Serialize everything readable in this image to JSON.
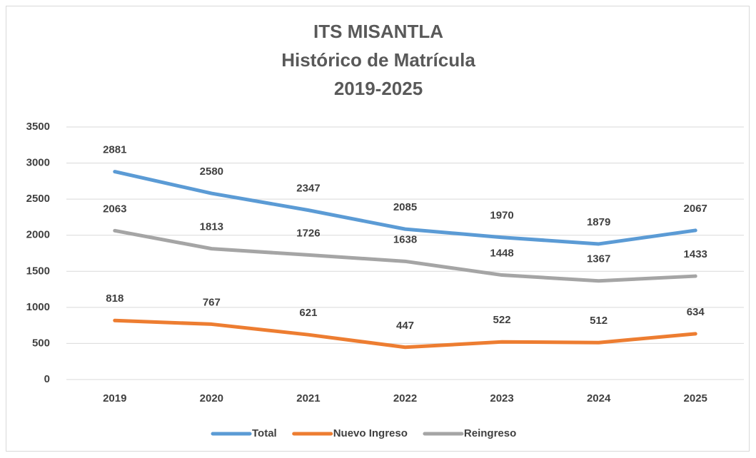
{
  "chart_data": {
    "type": "line",
    "title": [
      "ITS MISANTLA",
      "Histórico de Matrícula",
      "2019-2025"
    ],
    "categories": [
      "2019",
      "2020",
      "2021",
      "2022",
      "2023",
      "2024",
      "2025"
    ],
    "series": [
      {
        "name": "Total",
        "color": "#5b9bd5",
        "values": [
          2881,
          2580,
          2347,
          2085,
          1970,
          1879,
          2067
        ]
      },
      {
        "name": "Nuevo Ingreso",
        "color": "#ed7d31",
        "values": [
          818,
          767,
          621,
          447,
          522,
          512,
          634
        ]
      },
      {
        "name": "Reingreso",
        "color": "#a5a5a5",
        "values": [
          2063,
          1813,
          1726,
          1638,
          1448,
          1367,
          1433
        ]
      }
    ],
    "ylim": [
      0,
      3500
    ],
    "yticks": [
      0,
      500,
      1000,
      1500,
      2000,
      2500,
      3000,
      3500
    ],
    "grid": true,
    "legend": "bottom"
  }
}
